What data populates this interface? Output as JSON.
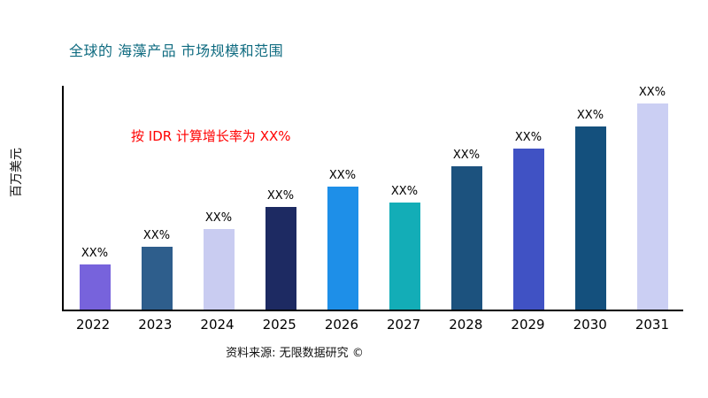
{
  "title": "全球的 海藻产品 市场规模和范围",
  "annotation": "按 IDR 计算增长率为 XX%",
  "source": "资料来源: 无限数据研究 ©",
  "colors": {
    "title": "#0f6b80",
    "annotation": "#ff0000",
    "axis": "#000000",
    "background": "#ffffff"
  },
  "chart_data": {
    "type": "bar",
    "title": "全球的 海藻产品 市场规模和范围",
    "xlabel": "",
    "ylabel": "百万美元",
    "ylim": [
      0,
      100
    ],
    "grid": false,
    "legend": false,
    "categories": [
      "2022",
      "2023",
      "2024",
      "2025",
      "2026",
      "2027",
      "2028",
      "2029",
      "2030",
      "2031"
    ],
    "values": [
      20,
      28,
      36,
      46,
      55,
      48,
      64,
      72,
      82,
      92
    ],
    "bar_labels": [
      "XX%",
      "XX%",
      "XX%",
      "XX%",
      "XX%",
      "XX%",
      "XX%",
      "XX%",
      "XX%",
      "XX%"
    ],
    "bar_colors": [
      "#7763dc",
      "#2e5e8c",
      "#c9ccf1",
      "#1d2a62",
      "#1e8fe8",
      "#13adb7",
      "#1c527e",
      "#4052c4",
      "#14507d",
      "#cbcff3"
    ],
    "annotation": {
      "text": "按 IDR 计算增长率为 XX%",
      "color": "#ff0000"
    }
  }
}
